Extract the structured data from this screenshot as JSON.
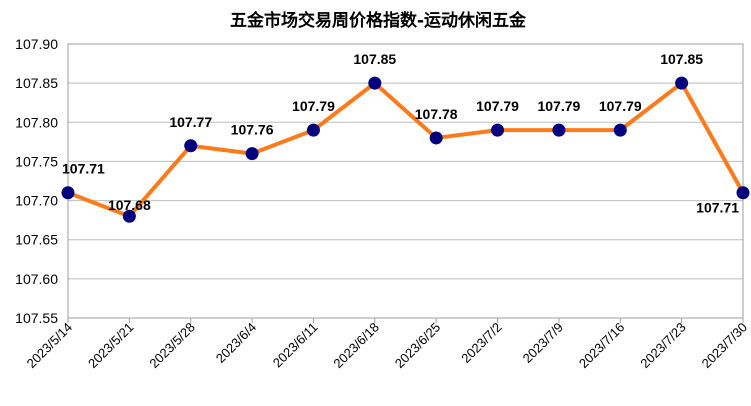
{
  "chart_data": {
    "type": "line",
    "title": "五金市场交易周价格指数-运动休闲五金",
    "xlabel": "",
    "ylabel": "",
    "categories": [
      "2023/5/14",
      "2023/5/21",
      "2023/5/28",
      "2023/6/4",
      "2023/6/11",
      "2023/6/18",
      "2023/6/25",
      "2023/7/2",
      "2023/7/9",
      "2023/7/16",
      "2023/7/23",
      "2023/7/30"
    ],
    "series": [
      {
        "values": [
          107.71,
          107.68,
          107.77,
          107.76,
          107.79,
          107.85,
          107.78,
          107.79,
          107.79,
          107.79,
          107.85,
          107.71
        ]
      }
    ],
    "data_labels": [
      "107.71",
      "107.68",
      "107.77",
      "107.76",
      "107.79",
      "107.85",
      "107.78",
      "107.79",
      "107.79",
      "107.79",
      "107.85",
      "107.71"
    ],
    "ylim": [
      107.55,
      107.9
    ],
    "yticks": [
      "107.55",
      "107.60",
      "107.65",
      "107.70",
      "107.75",
      "107.80",
      "107.85",
      "107.90"
    ],
    "grid": true,
    "legend": "none",
    "colors": {
      "line": "#ff7a1a",
      "marker": "#00007f",
      "grid": "#bdbdbd"
    }
  }
}
